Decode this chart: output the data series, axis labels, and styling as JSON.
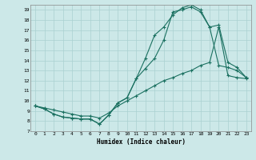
{
  "xlabel": "Humidex (Indice chaleur)",
  "bg_color": "#cce8e8",
  "line_color": "#1a7060",
  "grid_color": "#aad0d0",
  "xlim": [
    -0.5,
    23.5
  ],
  "ylim": [
    7,
    19.5
  ],
  "yticks": [
    7,
    8,
    9,
    10,
    11,
    12,
    13,
    14,
    15,
    16,
    17,
    18,
    19
  ],
  "xticks": [
    0,
    1,
    2,
    3,
    4,
    5,
    6,
    7,
    8,
    9,
    10,
    11,
    12,
    13,
    14,
    15,
    16,
    17,
    18,
    19,
    20,
    21,
    22,
    23
  ],
  "line1_x": [
    0,
    1,
    2,
    3,
    4,
    5,
    6,
    7,
    8,
    9,
    10,
    11,
    12,
    13,
    14,
    15,
    16,
    17,
    18,
    19,
    20,
    21,
    22,
    23
  ],
  "line1_y": [
    9.5,
    9.2,
    8.7,
    8.4,
    8.3,
    8.2,
    8.2,
    7.7,
    8.6,
    9.8,
    10.3,
    12.2,
    14.2,
    16.5,
    17.3,
    18.5,
    19.2,
    19.5,
    19.0,
    17.3,
    13.5,
    13.3,
    13.0,
    12.3
  ],
  "line2_x": [
    0,
    1,
    2,
    3,
    4,
    5,
    6,
    7,
    8,
    9,
    10,
    11,
    12,
    13,
    14,
    15,
    16,
    17,
    18,
    19,
    20,
    21,
    22,
    23
  ],
  "line2_y": [
    9.5,
    9.2,
    8.7,
    8.4,
    8.3,
    8.2,
    8.2,
    7.7,
    8.6,
    9.8,
    10.3,
    12.2,
    13.2,
    14.2,
    16.0,
    18.8,
    19.0,
    19.3,
    18.8,
    17.3,
    17.5,
    13.8,
    13.3,
    12.3
  ],
  "line3_x": [
    0,
    1,
    2,
    3,
    4,
    5,
    6,
    7,
    8,
    9,
    10,
    11,
    12,
    13,
    14,
    15,
    16,
    17,
    18,
    19,
    20,
    21,
    22,
    23
  ],
  "line3_y": [
    9.5,
    9.3,
    9.1,
    8.9,
    8.7,
    8.5,
    8.5,
    8.3,
    8.8,
    9.5,
    10.0,
    10.5,
    11.0,
    11.5,
    12.0,
    12.3,
    12.7,
    13.0,
    13.5,
    13.8,
    17.3,
    12.5,
    12.3,
    12.2
  ],
  "marker": "+"
}
